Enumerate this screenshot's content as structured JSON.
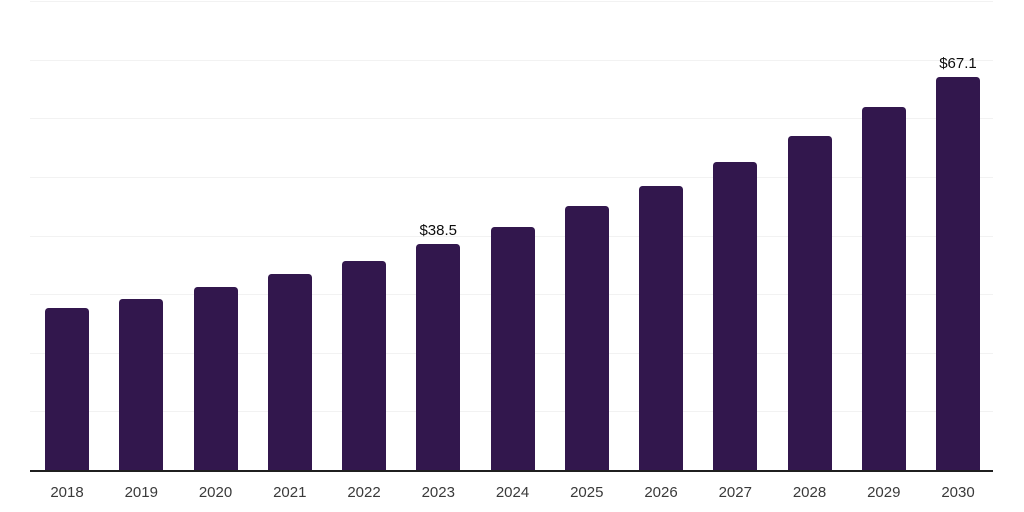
{
  "chart_data": {
    "type": "bar",
    "title": "",
    "xlabel": "",
    "ylabel": "",
    "categories": [
      "2018",
      "2019",
      "2020",
      "2021",
      "2022",
      "2023",
      "2024",
      "2025",
      "2026",
      "2027",
      "2028",
      "2029",
      "2030"
    ],
    "values": [
      27.6,
      29.2,
      31.3,
      33.5,
      35.7,
      38.5,
      41.5,
      45.0,
      48.5,
      52.5,
      57.0,
      61.9,
      67.1
    ],
    "annotations": [
      {
        "category": "2023",
        "text": "$38.5"
      },
      {
        "category": "2030",
        "text": "$67.1"
      }
    ],
    "ylim": [
      0,
      80
    ],
    "grid_step": 10,
    "grid": true,
    "legend": false,
    "y_tick_labels_visible": false,
    "colors": {
      "bar": "#32174d",
      "gridline": "#f2f2f2",
      "axis": "#1f1f1f",
      "tick_label": "#3a3a3a",
      "data_label": "#0d0d0d",
      "background": "#ffffff"
    }
  }
}
